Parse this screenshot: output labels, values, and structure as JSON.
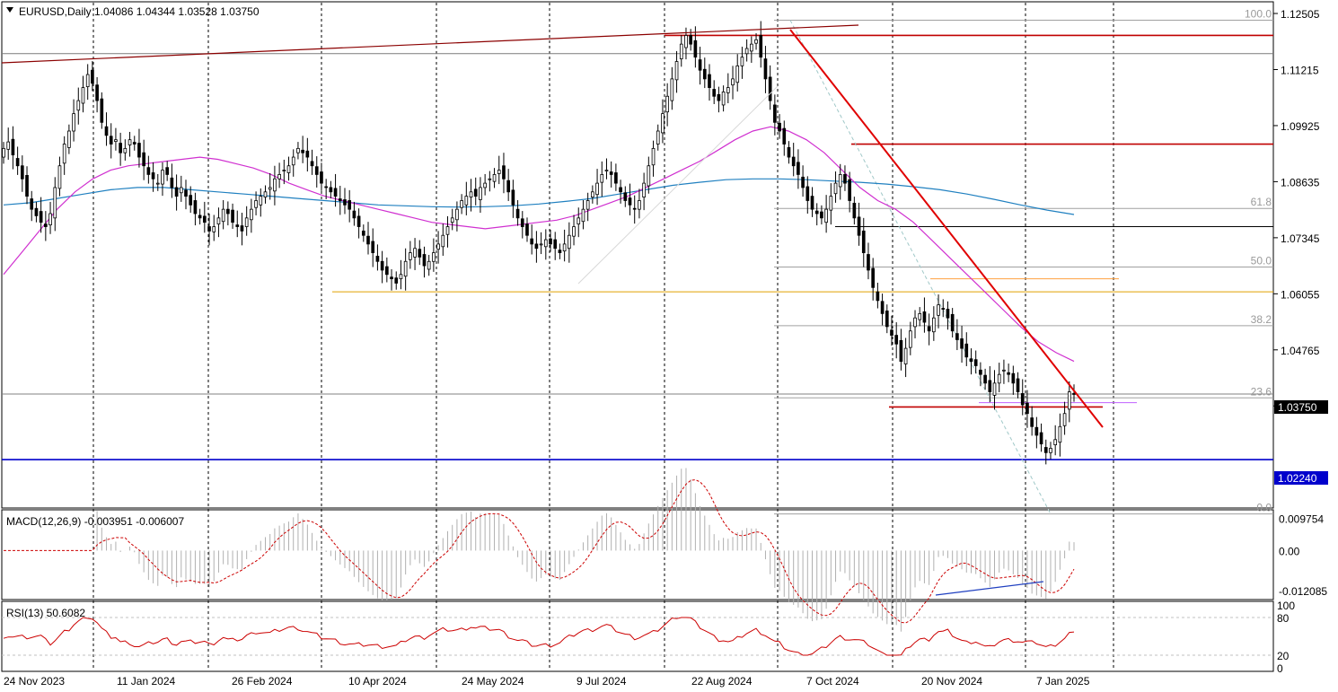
{
  "chart_data": {
    "type": "candlestick",
    "symbol": "EURUSD",
    "timeframe": "Daily",
    "ohlc_header": {
      "open": "1.04086",
      "high": "1.04344",
      "low": "1.03528",
      "close": "1.03750"
    },
    "title": "EURUSD,Daily  1.04086 1.04344 1.03528 1.03750",
    "ylim": [
      1.0125,
      1.1265
    ],
    "price_ticks": [
      "1.12505",
      "1.11215",
      "1.09925",
      "1.08635",
      "1.07345",
      "1.06055",
      "1.04765",
      "1.03475"
    ],
    "current_price_label": "1.03750",
    "support_label": "1.02240",
    "x_ticks": [
      "24 Nov 2023",
      "11 Jan 2024",
      "26 Feb 2024",
      "10 Apr 2024",
      "24 May 2024",
      "9 Jul 2024",
      "22 Aug 2024",
      "7 Oct 2024",
      "20 Nov 2024",
      "7 Jan 2025"
    ],
    "series_close": [
      1.094,
      1.0955,
      1.0925,
      1.09,
      1.087,
      1.083,
      1.08,
      1.0785,
      1.077,
      1.076,
      1.079,
      1.085,
      1.09,
      1.095,
      1.098,
      1.102,
      1.105,
      1.108,
      1.111,
      1.109,
      1.105,
      1.1,
      1.097,
      1.095,
      1.096,
      1.093,
      1.094,
      1.096,
      1.095,
      1.092,
      1.09,
      1.088,
      1.087,
      1.086,
      1.089,
      1.088,
      1.085,
      1.083,
      1.085,
      1.083,
      1.081,
      1.079,
      1.078,
      1.077,
      1.075,
      1.076,
      1.078,
      1.08,
      1.079,
      1.077,
      1.076,
      1.075,
      1.078,
      1.08,
      1.082,
      1.083,
      1.084,
      1.085,
      1.087,
      1.088,
      1.089,
      1.09,
      1.092,
      1.094,
      1.093,
      1.092,
      1.09,
      1.088,
      1.086,
      1.085,
      1.084,
      1.083,
      1.082,
      1.081,
      1.08,
      1.078,
      1.076,
      1.074,
      1.072,
      1.07,
      1.068,
      1.066,
      1.065,
      1.064,
      1.063,
      1.065,
      1.068,
      1.07,
      1.071,
      1.069,
      1.067,
      1.068,
      1.07,
      1.072,
      1.074,
      1.076,
      1.078,
      1.08,
      1.082,
      1.083,
      1.084,
      1.083,
      1.085,
      1.086,
      1.087,
      1.088,
      1.089,
      1.087,
      1.084,
      1.081,
      1.078,
      1.076,
      1.074,
      1.072,
      1.071,
      1.072,
      1.073,
      1.072,
      1.071,
      1.07,
      1.072,
      1.074,
      1.076,
      1.078,
      1.08,
      1.082,
      1.084,
      1.086,
      1.088,
      1.089,
      1.088,
      1.086,
      1.084,
      1.082,
      1.081,
      1.08,
      1.082,
      1.086,
      1.09,
      1.094,
      1.098,
      1.102,
      1.106,
      1.11,
      1.114,
      1.118,
      1.12,
      1.118,
      1.115,
      1.112,
      1.11,
      1.108,
      1.106,
      1.105,
      1.107,
      1.108,
      1.11,
      1.113,
      1.115,
      1.117,
      1.118,
      1.119,
      1.115,
      1.11,
      1.105,
      1.1,
      1.098,
      1.095,
      1.092,
      1.09,
      1.088,
      1.085,
      1.082,
      1.08,
      1.079,
      1.078,
      1.08,
      1.083,
      1.086,
      1.088,
      1.086,
      1.082,
      1.078,
      1.074,
      1.07,
      1.066,
      1.062,
      1.059,
      1.056,
      1.053,
      1.051,
      1.049,
      1.045,
      1.048,
      1.052,
      1.055,
      1.056,
      1.054,
      1.052,
      1.055,
      1.058,
      1.057,
      1.055,
      1.052,
      1.05,
      1.048,
      1.046,
      1.045,
      1.044,
      1.042,
      1.04,
      1.038,
      1.04,
      1.042,
      1.043,
      1.042,
      1.04,
      1.038,
      1.035,
      1.033,
      1.03,
      1.028,
      1.026,
      1.024,
      1.025,
      1.027,
      1.03,
      1.033,
      1.038,
      1.0375
    ],
    "sma_pink": [
      1.065,
      1.07,
      1.075,
      1.08,
      1.084,
      1.087,
      1.089,
      1.09,
      1.0905,
      1.091,
      1.0915,
      1.092,
      1.0915,
      1.0905,
      1.0895,
      1.088,
      1.086,
      1.0845,
      1.083,
      1.082,
      1.081,
      1.08,
      1.079,
      1.078,
      1.077,
      1.0765,
      1.076,
      1.0755,
      1.076,
      1.0765,
      1.077,
      1.0775,
      1.0785,
      1.08,
      1.0815,
      1.083,
      1.085,
      1.087,
      1.089,
      1.091,
      1.0935,
      1.096,
      1.098,
      1.099,
      1.098,
      1.096,
      1.093,
      1.089,
      1.085,
      1.082,
      1.08,
      1.077,
      1.073,
      1.069,
      1.065,
      1.061,
      1.057,
      1.053,
      1.0495,
      1.047,
      1.045
    ],
    "sma_blue": [
      1.081,
      1.0815,
      1.0825,
      1.0835,
      1.0845,
      1.085,
      1.085,
      1.0845,
      1.084,
      1.0835,
      1.083,
      1.0825,
      1.082,
      1.0815,
      1.081,
      1.0808,
      1.0806,
      1.0805,
      1.0806,
      1.0808,
      1.0812,
      1.0818,
      1.0825,
      1.0835,
      1.0845,
      1.0855,
      1.0862,
      1.0868,
      1.087,
      1.087,
      1.0868,
      1.0865,
      1.0862,
      1.0858,
      1.0852,
      1.0845,
      1.0835,
      1.0823,
      1.081,
      1.0798,
      1.0788
    ],
    "fibonacci": [
      {
        "level": "100.0",
        "price": 1.1235
      },
      {
        "level": "61.8",
        "price": 1.0802
      },
      {
        "level": "50.0",
        "price": 1.0667
      },
      {
        "level": "38.2",
        "price": 1.0532
      },
      {
        "level": "23.6",
        "price": 1.0366
      },
      {
        "level": "0.0",
        "price": 1.0099
      }
    ],
    "horizontal_levels": [
      {
        "price": 1.12,
        "color": "#c00000"
      },
      {
        "price": 1.1158,
        "color": "#7a7a7a"
      },
      {
        "price": 1.095,
        "color": "#c00000"
      },
      {
        "price": 1.076,
        "color": "#000000"
      },
      {
        "price": 1.064,
        "color": "#ffa040"
      },
      {
        "price": 1.061,
        "color": "#e0a000"
      },
      {
        "price": 1.0345,
        "color": "#c00000"
      },
      {
        "price": 1.0355,
        "color": "#c060ff"
      },
      {
        "price": 1.0224,
        "color": "#0000cc"
      }
    ],
    "macd": {
      "label": "MACD(12,26,9) -0.003951 -0.006007",
      "ticks": [
        "0.009754",
        "0.00",
        "-0.012085"
      ],
      "ylim": [
        -0.0142,
        0.0112
      ]
    },
    "rsi": {
      "label": "RSI(13) 50.6082",
      "ticks": [
        "100",
        "80",
        "20",
        "0"
      ],
      "ylim": [
        0,
        100
      ]
    },
    "colors": {
      "candle_up": "#ffffff",
      "candle_body": "#000000",
      "trendline_red": "#e00000",
      "ma_pink": "#d030d0",
      "ma_blue": "#2080c0",
      "support_blue": "#0000cc",
      "grid": "#000000",
      "macd_signal": "#cc0000",
      "rsi_line": "#cc0000"
    }
  }
}
